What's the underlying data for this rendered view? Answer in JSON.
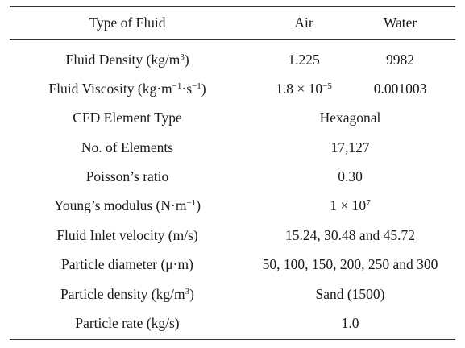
{
  "table": {
    "headers": [
      "Type of Fluid",
      "Air",
      "Water"
    ],
    "rows": [
      {
        "label": [
          "Fluid Density (kg/m",
          "3",
          ")"
        ],
        "air": [
          "1.225"
        ],
        "water": [
          "9982"
        ]
      },
      {
        "label": [
          "Fluid Viscosity (kg·m",
          "−1",
          "·s",
          "−1",
          ")"
        ],
        "air": [
          "1.8 × 10",
          "−5"
        ],
        "water": [
          "0.001003"
        ]
      },
      {
        "label": [
          "CFD Element Type"
        ],
        "shared": [
          "Hexagonal"
        ]
      },
      {
        "label": [
          "No. of Elements"
        ],
        "shared": [
          "17,127"
        ]
      },
      {
        "label": [
          "Poisson’s ratio"
        ],
        "shared": [
          "0.30"
        ]
      },
      {
        "label": [
          "Young’s modulus (N·m",
          "−1",
          ")"
        ],
        "shared": [
          "1 × 10",
          "7"
        ]
      },
      {
        "label": [
          "Fluid Inlet velocity (m/s)"
        ],
        "shared": [
          "15.24, 30.48 and 45.72"
        ]
      },
      {
        "label": [
          "Particle diameter (μ·m)"
        ],
        "shared": [
          "50, 100, 150, 200, 250 and 300"
        ]
      },
      {
        "label": [
          "Particle density (kg/m",
          "3",
          ")"
        ],
        "shared": [
          "Sand (1500)"
        ]
      },
      {
        "label": [
          "Particle rate (kg/s)"
        ],
        "shared": [
          "1.0"
        ]
      }
    ]
  }
}
